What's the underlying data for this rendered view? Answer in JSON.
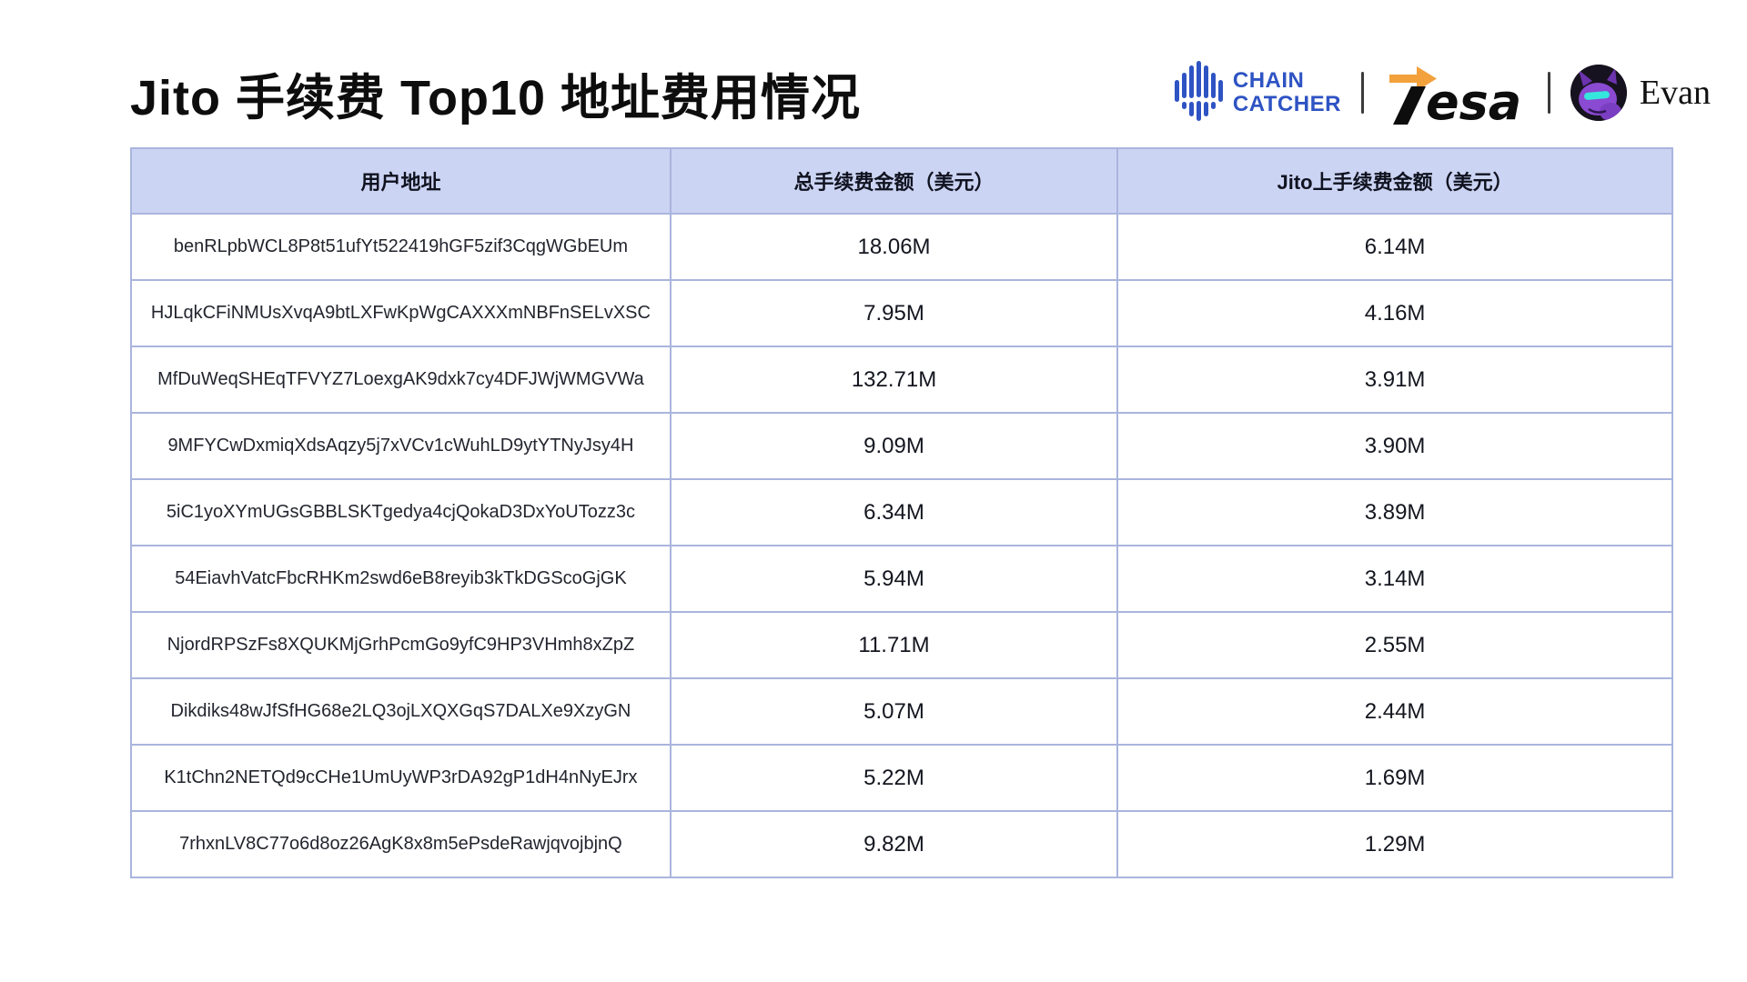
{
  "page": {
    "title": "Jito 手续费 Top10 地址费用情况"
  },
  "logos": {
    "chaincatcher": {
      "line1": "CHAIN",
      "line2": "CATCHER",
      "color": "#2e53c3"
    },
    "tesa": {
      "text": "esa",
      "arrow_color": "#f2a13c"
    },
    "evan": {
      "label": "Evan"
    }
  },
  "colors": {
    "table_header_bg": "#ccd4f4",
    "table_border": "#aab5dd",
    "title_text": "#0d0d0d"
  },
  "chart_data": {
    "type": "table",
    "title": "Jito 手续费 Top10 地址费用情况",
    "columns": [
      "用户地址",
      "总手续费金额（美元）",
      "Jito上手续费金额（美元）"
    ],
    "rows": [
      [
        "benRLpbWCL8P8t51ufYt522419hGF5zif3CqgWGbEUm",
        "18.06M",
        "6.14M"
      ],
      [
        "HJLqkCFiNMUsXvqA9btLXFwKpWgCAXXXmNBFnSELvXSC",
        "7.95M",
        "4.16M"
      ],
      [
        "MfDuWeqSHEqTFVYZ7LoexgAK9dxk7cy4DFJWjWMGVWa",
        "132.71M",
        "3.91M"
      ],
      [
        "9MFYCwDxmiqXdsAqzy5j7xVCv1cWuhLD9ytYTNyJsy4H",
        "9.09M",
        "3.90M"
      ],
      [
        "5iC1yoXYmUGsGBBLSKTgedya4cjQokaD3DxYoUTozz3c",
        "6.34M",
        "3.89M"
      ],
      [
        "54EiavhVatcFbcRHKm2swd6eB8reyib3kTkDGScoGjGK",
        "5.94M",
        "3.14M"
      ],
      [
        "NjordRPSzFs8XQUKMjGrhPcmGo9yfC9HP3VHmh8xZpZ",
        "11.71M",
        "2.55M"
      ],
      [
        "Dikdiks48wJfSfHG68e2LQ3ojLXQXGqS7DALXe9XzyGN",
        "5.07M",
        "2.44M"
      ],
      [
        "K1tChn2NETQd9cCHe1UmUyWP3rDA92gP1dH4nNyEJrx",
        "5.22M",
        "1.69M"
      ],
      [
        "7rhxnLV8C77o6d8oz26AgK8x8m5ePsdeRawjqvojbjnQ",
        "9.82M",
        "1.29M"
      ]
    ]
  }
}
